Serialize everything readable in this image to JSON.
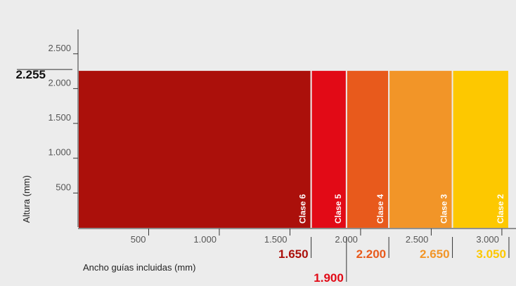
{
  "chart_data": {
    "type": "bar",
    "title": "",
    "xlabel": "Ancho guías incluidas (mm)",
    "ylabel": "Altura (mm)",
    "xlim": [
      0,
      3100
    ],
    "ylim": [
      0,
      2850
    ],
    "x_ticks": [
      500,
      1000,
      1500,
      2000,
      2500,
      3000
    ],
    "x_tick_labels": [
      "500",
      "1.000",
      "1.500",
      "2.000",
      "2.500",
      "3.000"
    ],
    "y_ticks": [
      500,
      1000,
      1500,
      2000,
      2500
    ],
    "y_tick_labels": [
      "500",
      "1.000",
      "1.500",
      "2.000",
      "2.500"
    ],
    "grid": false,
    "bar_height": 2255,
    "bar_height_label": "2.255",
    "series": [
      {
        "name": "Clase 6",
        "x_end": 1650,
        "x_end_label": "1.650",
        "color": "#ab100b"
      },
      {
        "name": "Clase 5",
        "x_end": 1900,
        "x_end_label": "1.900",
        "color": "#e20a16"
      },
      {
        "name": "Clase 4",
        "x_end": 2200,
        "x_end_label": "2.200",
        "color": "#e85a1c"
      },
      {
        "name": "Clase 3",
        "x_end": 2650,
        "x_end_label": "2.650",
        "color": "#f29528"
      },
      {
        "name": "Clase 2",
        "x_end": 3050,
        "x_end_label": "3.050",
        "color": "#fdc800"
      }
    ]
  }
}
